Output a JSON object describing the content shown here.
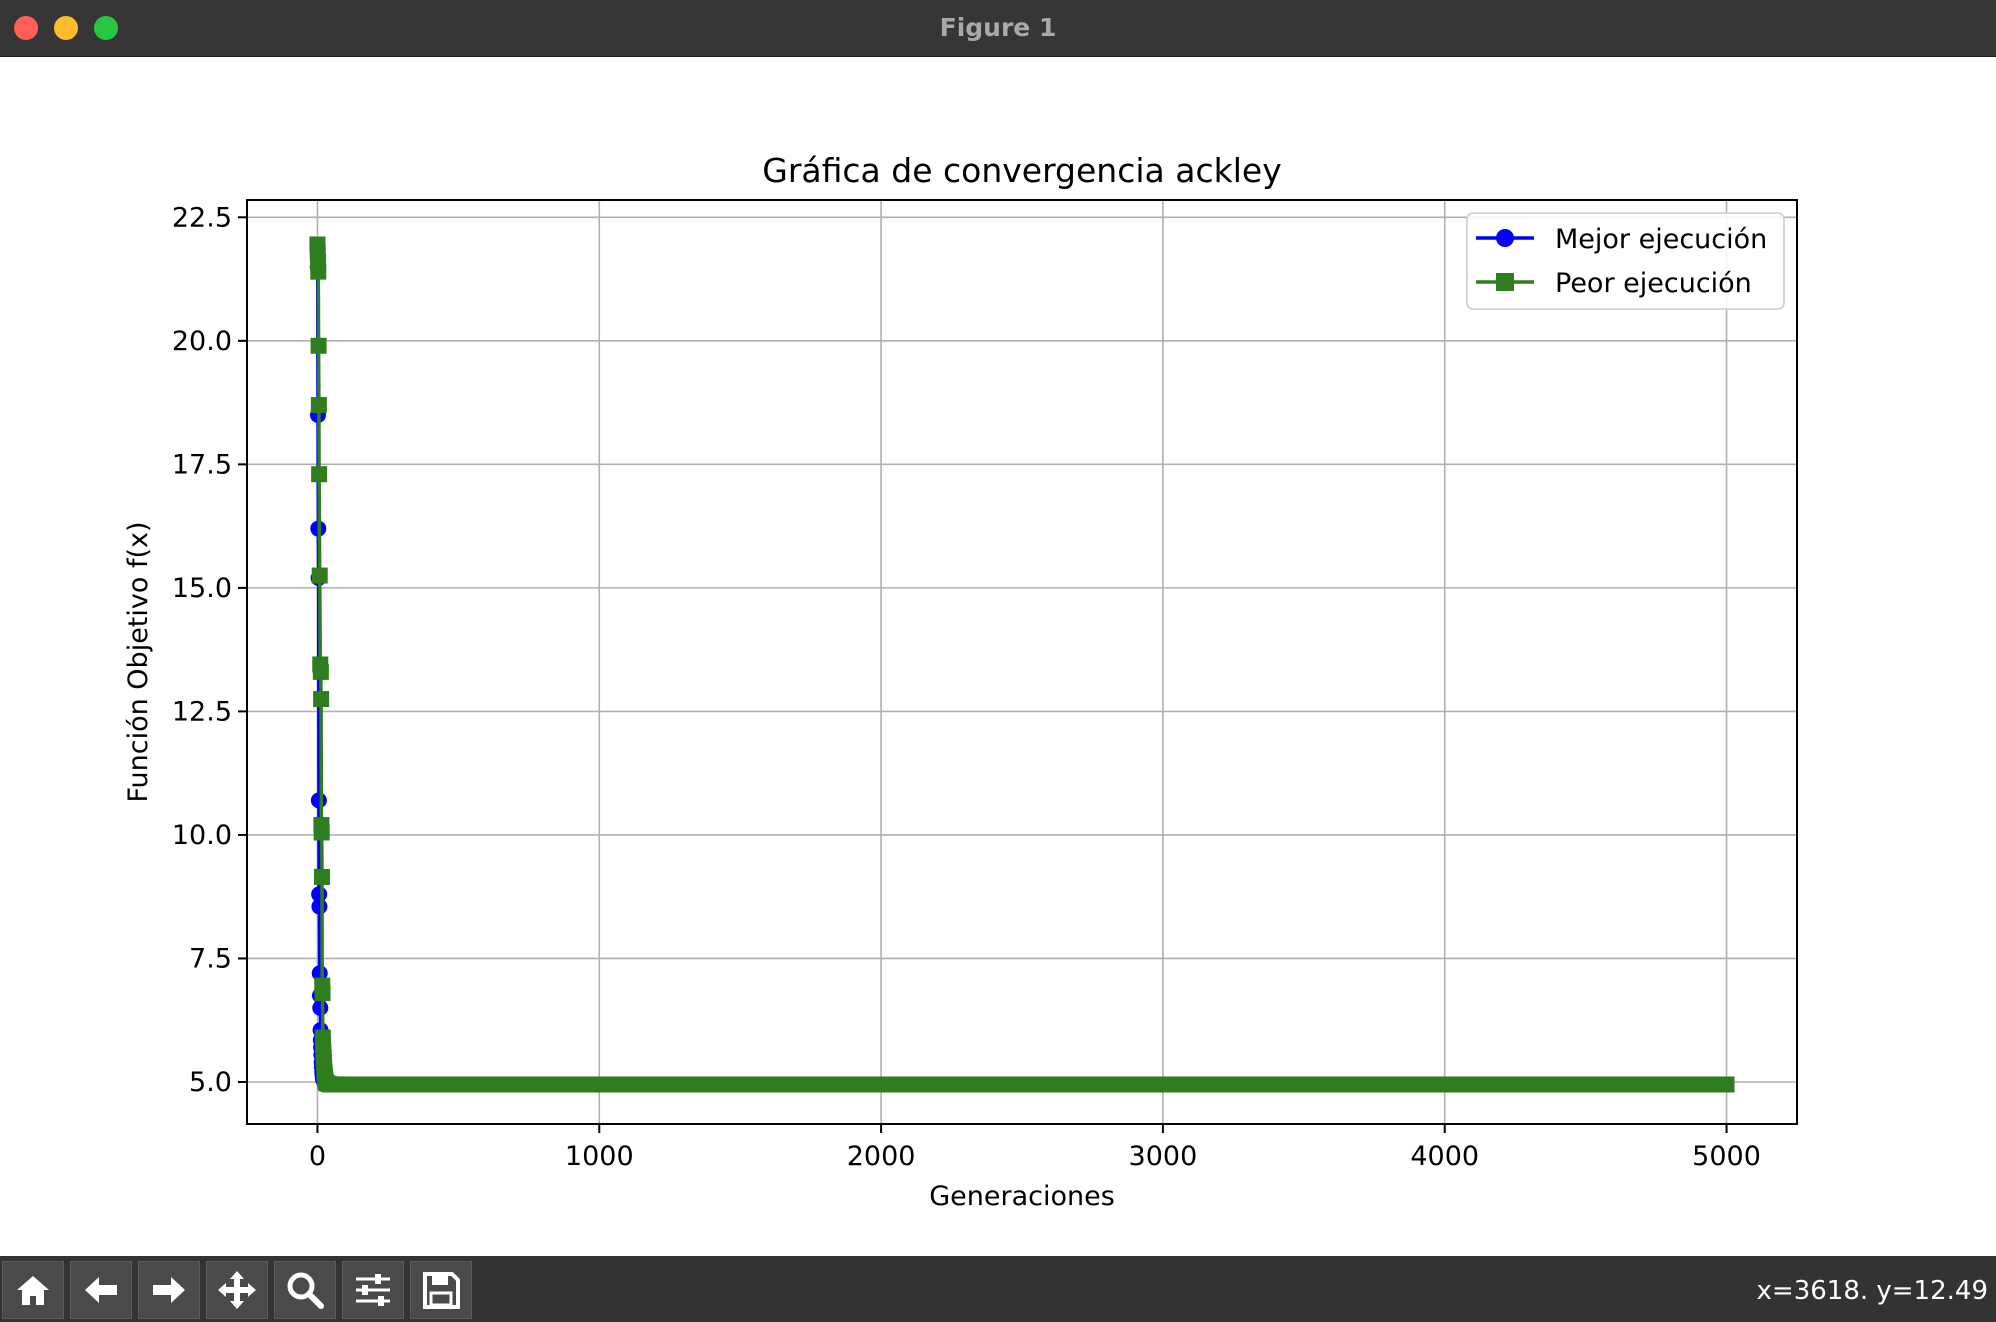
{
  "window": {
    "title": "Figure 1",
    "controls": [
      {
        "name": "close",
        "color": "#ff5f57"
      },
      {
        "name": "minimize",
        "color": "#febc2e"
      },
      {
        "name": "zoom",
        "color": "#28c840"
      }
    ]
  },
  "toolbar": {
    "tools": [
      {
        "name": "home",
        "icon": "home-icon"
      },
      {
        "name": "back",
        "icon": "arrow-left-icon"
      },
      {
        "name": "forward",
        "icon": "arrow-right-icon"
      },
      {
        "name": "pan",
        "icon": "move-icon"
      },
      {
        "name": "zoom",
        "icon": "magnifier-icon"
      },
      {
        "name": "configure-subplots",
        "icon": "sliders-icon"
      },
      {
        "name": "save",
        "icon": "floppy-icon"
      }
    ],
    "coords": "x=3618. y=12.49"
  },
  "chart_data": {
    "type": "line",
    "title": "Gráfica de convergencia ackley",
    "xlabel": "Generaciones",
    "ylabel": "Función Objetivo f(x)",
    "xlim": [
      -250,
      5250
    ],
    "ylim": [
      4.15,
      22.85
    ],
    "xticks": [
      0,
      1000,
      2000,
      3000,
      4000,
      5000
    ],
    "xtick_labels": [
      "0",
      "1000",
      "2000",
      "3000",
      "4000",
      "5000"
    ],
    "yticks": [
      5.0,
      7.5,
      10.0,
      12.5,
      15.0,
      17.5,
      20.0,
      22.5
    ],
    "ytick_labels": [
      "5.0",
      "7.5",
      "10.0",
      "12.5",
      "15.0",
      "17.5",
      "20.0",
      "22.5"
    ],
    "grid": true,
    "legend_position": "upper right",
    "series": [
      {
        "name": "Mejor ejecución",
        "color": "#0000ff",
        "marker": "circle",
        "x": [
          0,
          1,
          2,
          3,
          4,
          5,
          6,
          7,
          8,
          9,
          10,
          11,
          12,
          13,
          14,
          15,
          16,
          17,
          18,
          19,
          20,
          25,
          30,
          35,
          40,
          45,
          50,
          60,
          70,
          80,
          100,
          5000
        ],
        "y": [
          21.9,
          21.5,
          18.5,
          16.2,
          15.2,
          10.7,
          8.8,
          8.55,
          7.2,
          6.75,
          6.5,
          6.05,
          5.85,
          5.7,
          5.55,
          5.4,
          5.3,
          5.2,
          5.15,
          5.1,
          5.05,
          5.0,
          4.98,
          4.97,
          4.96,
          4.95,
          4.95,
          4.95,
          4.95,
          4.95,
          4.95,
          4.95
        ]
      },
      {
        "name": "Peor ejecución",
        "color": "#2e7d1e",
        "marker": "square",
        "x": [
          0,
          1,
          2,
          3,
          4,
          5,
          6,
          8,
          10,
          12,
          13,
          14,
          15,
          16,
          17,
          18,
          19,
          20,
          21,
          22,
          23,
          24,
          25,
          26,
          27,
          28,
          30,
          32,
          35,
          40,
          45,
          50,
          60,
          70,
          80,
          100,
          5000
        ],
        "y": [
          21.95,
          21.8,
          21.6,
          21.4,
          19.9,
          18.7,
          17.3,
          15.25,
          13.45,
          13.3,
          12.75,
          10.2,
          10.05,
          9.15,
          6.95,
          6.8,
          5.9,
          5.75,
          5.6,
          5.5,
          5.4,
          5.3,
          5.2,
          5.15,
          5.1,
          5.05,
          5.0,
          4.98,
          4.97,
          4.96,
          4.95,
          4.95,
          4.95,
          4.95,
          4.95,
          4.95,
          4.95
        ]
      }
    ]
  }
}
